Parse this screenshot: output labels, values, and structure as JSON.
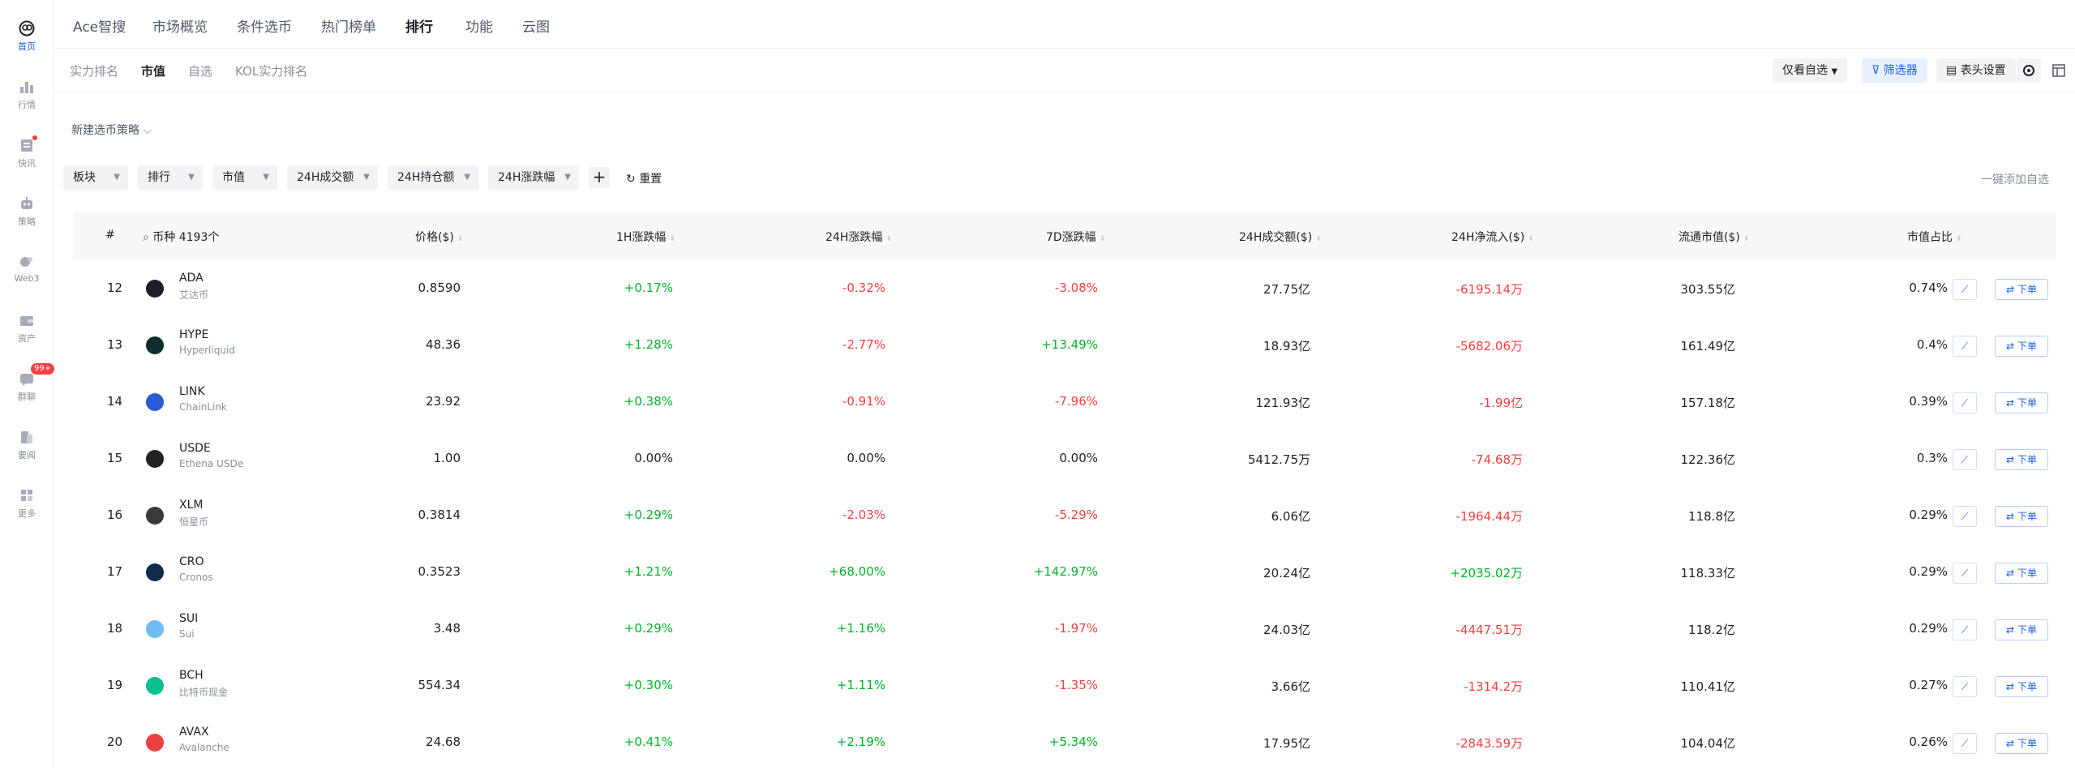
{
  "rail": [
    {
      "label": "首页",
      "icon": "home-icon"
    },
    {
      "label": "行情",
      "icon": "chart-bar-icon"
    },
    {
      "label": "快讯",
      "icon": "news-icon"
    },
    {
      "label": "策略",
      "icon": "robot-icon"
    },
    {
      "label": "Web3",
      "icon": "web3-icon"
    },
    {
      "label": "资产",
      "icon": "wallet-icon"
    },
    {
      "label": "群聊",
      "icon": "chat-icon",
      "badge": "99+"
    },
    {
      "label": "要闻",
      "icon": "document-icon"
    },
    {
      "label": "更多",
      "icon": "grid-icon"
    }
  ],
  "topnav": [
    "Ace智搜",
    "市场概览",
    "条件选币",
    "热门榜单",
    "排行",
    "功能",
    "云图"
  ],
  "subnav": [
    "实力排名",
    "市值",
    "自选",
    "KOL实力排名"
  ],
  "toolbar": {
    "only_watch": "仅看自选",
    "filter": "筛选器",
    "header_settings": "表头设置"
  },
  "strategy_label": "新建选币策略",
  "filters": [
    "板块",
    "排行",
    "市值",
    "24H成交额",
    "24H持仓额",
    "24H涨跌幅"
  ],
  "reset_label": "重置",
  "add_all_label": "一键添加自选",
  "table": {
    "headers": {
      "rank": "#",
      "coin": "币种 4193个",
      "price": "价格($)",
      "h1": "1H涨跌幅",
      "h24": "24H涨跌幅",
      "d7": "7D涨跌幅",
      "volume": "24H成交额($)",
      "inflow": "24H净流入($)",
      "mcap": "流通市值($)",
      "share": "市值占比"
    },
    "order_label": "下单",
    "rows": [
      {
        "rank": "12",
        "symbol": "ADA",
        "name": "艾达币",
        "logo": "#1b1f2a",
        "price": "0.8590",
        "h1": "+0.17%",
        "h1_dir": "up",
        "h24": "-0.32%",
        "h24_dir": "down",
        "d7": "-3.08%",
        "d7_dir": "down",
        "volume": "27.75亿",
        "inflow": "-6195.14万",
        "inflow_dir": "down",
        "mcap": "303.55亿",
        "share": "0.74%"
      },
      {
        "rank": "13",
        "symbol": "HYPE",
        "name": "Hyperliquid",
        "logo": "#0f2e2b",
        "price": "48.36",
        "h1": "+1.28%",
        "h1_dir": "up",
        "h24": "-2.77%",
        "h24_dir": "down",
        "d7": "+13.49%",
        "d7_dir": "up",
        "volume": "18.93亿",
        "inflow": "-5682.06万",
        "inflow_dir": "down",
        "mcap": "161.49亿",
        "share": "0.4%"
      },
      {
        "rank": "14",
        "symbol": "LINK",
        "name": "ChainLink",
        "logo": "#2a5ada",
        "price": "23.92",
        "h1": "+0.38%",
        "h1_dir": "up",
        "h24": "-0.91%",
        "h24_dir": "down",
        "d7": "-7.96%",
        "d7_dir": "down",
        "volume": "121.93亿",
        "inflow": "-1.99亿",
        "inflow_dir": "down",
        "mcap": "157.18亿",
        "share": "0.39%"
      },
      {
        "rank": "15",
        "symbol": "USDE",
        "name": "Ethena USDe",
        "logo": "#222222",
        "price": "1.00",
        "h1": "0.00%",
        "h1_dir": "neutral",
        "h24": "0.00%",
        "h24_dir": "neutral",
        "d7": "0.00%",
        "d7_dir": "neutral",
        "volume": "5412.75万",
        "inflow": "-74.68万",
        "inflow_dir": "down",
        "mcap": "122.36亿",
        "share": "0.3%"
      },
      {
        "rank": "16",
        "symbol": "XLM",
        "name": "恒星币",
        "logo": "#3a3a3a",
        "price": "0.3814",
        "h1": "+0.29%",
        "h1_dir": "up",
        "h24": "-2.03%",
        "h24_dir": "down",
        "d7": "-5.29%",
        "d7_dir": "down",
        "volume": "6.06亿",
        "inflow": "-1964.44万",
        "inflow_dir": "down",
        "mcap": "118.8亿",
        "share": "0.29%"
      },
      {
        "rank": "17",
        "symbol": "CRO",
        "name": "Cronos",
        "logo": "#102a4c",
        "price": "0.3523",
        "h1": "+1.21%",
        "h1_dir": "up",
        "h24": "+68.00%",
        "h24_dir": "up",
        "d7": "+142.97%",
        "d7_dir": "up",
        "volume": "20.24亿",
        "inflow": "+2035.02万",
        "inflow_dir": "up",
        "mcap": "118.33亿",
        "share": "0.29%"
      },
      {
        "rank": "18",
        "symbol": "SUI",
        "name": "Sui",
        "logo": "#6fbcf0",
        "price": "3.48",
        "h1": "+0.29%",
        "h1_dir": "up",
        "h24": "+1.16%",
        "h24_dir": "up",
        "d7": "-1.97%",
        "d7_dir": "down",
        "volume": "24.03亿",
        "inflow": "-4447.51万",
        "inflow_dir": "down",
        "mcap": "118.2亿",
        "share": "0.29%"
      },
      {
        "rank": "19",
        "symbol": "BCH",
        "name": "比特币现金",
        "logo": "#0ac18e",
        "price": "554.34",
        "h1": "+0.30%",
        "h1_dir": "up",
        "h24": "+1.11%",
        "h24_dir": "up",
        "d7": "-1.35%",
        "d7_dir": "down",
        "volume": "3.66亿",
        "inflow": "-1314.2万",
        "inflow_dir": "down",
        "mcap": "110.41亿",
        "share": "0.27%"
      },
      {
        "rank": "20",
        "symbol": "AVAX",
        "name": "Avalanche",
        "logo": "#e84142",
        "price": "24.68",
        "h1": "+0.41%",
        "h1_dir": "up",
        "h24": "+2.19%",
        "h24_dir": "up",
        "d7": "+5.34%",
        "d7_dir": "up",
        "volume": "17.95亿",
        "inflow": "-2843.59万",
        "inflow_dir": "down",
        "mcap": "104.04亿",
        "share": "0.26%"
      }
    ]
  },
  "colors": {
    "accent": "#1a5fe0",
    "up": "#00b42a",
    "down": "#f53f3f"
  }
}
